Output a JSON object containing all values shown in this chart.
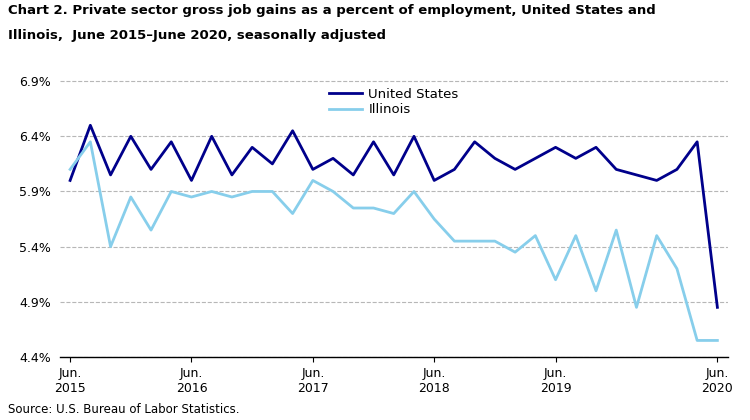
{
  "title_line1": "Chart 2. Private sector gross job gains as a percent of employment, United States and",
  "title_line2": "Illinois,  June 2015–June 2020, seasonally adjusted",
  "source": "Source: U.S. Bureau of Labor Statistics.",
  "us_data": [
    6.0,
    6.5,
    6.05,
    6.4,
    6.1,
    6.35,
    6.0,
    6.4,
    6.05,
    6.3,
    6.15,
    6.45,
    6.1,
    6.2,
    6.05,
    6.35,
    6.05,
    6.4,
    6.0,
    6.1,
    6.35,
    6.2,
    6.1,
    6.2,
    6.3,
    6.2,
    6.3,
    6.1,
    6.05,
    6.0,
    6.1,
    6.35,
    4.85
  ],
  "il_data": [
    6.1,
    6.35,
    5.4,
    5.85,
    5.55,
    5.9,
    5.85,
    5.9,
    5.85,
    5.9,
    5.9,
    5.7,
    6.0,
    5.9,
    5.75,
    5.75,
    5.7,
    5.9,
    5.65,
    5.45,
    5.45,
    5.45,
    5.35,
    5.5,
    5.1,
    5.5,
    5.0,
    5.55,
    4.85,
    5.5,
    5.2,
    4.55,
    4.55
  ],
  "us_color": "#00008B",
  "il_color": "#87CEEB",
  "ylim": [
    4.4,
    6.95
  ],
  "yticks": [
    4.4,
    4.9,
    5.4,
    5.9,
    6.4,
    6.9
  ],
  "xtick_positions": [
    0,
    6,
    12,
    18,
    24,
    32
  ],
  "xtick_labels": [
    "Jun.\n2015",
    "Jun.\n2016",
    "Jun.\n2017",
    "Jun.\n2018",
    "Jun.\n2019",
    "Jun.\n2020"
  ],
  "legend_labels": [
    "United States",
    "Illinois"
  ],
  "linewidth": 2.0,
  "background_color": "#ffffff",
  "grid_color": "#b0b0b0"
}
